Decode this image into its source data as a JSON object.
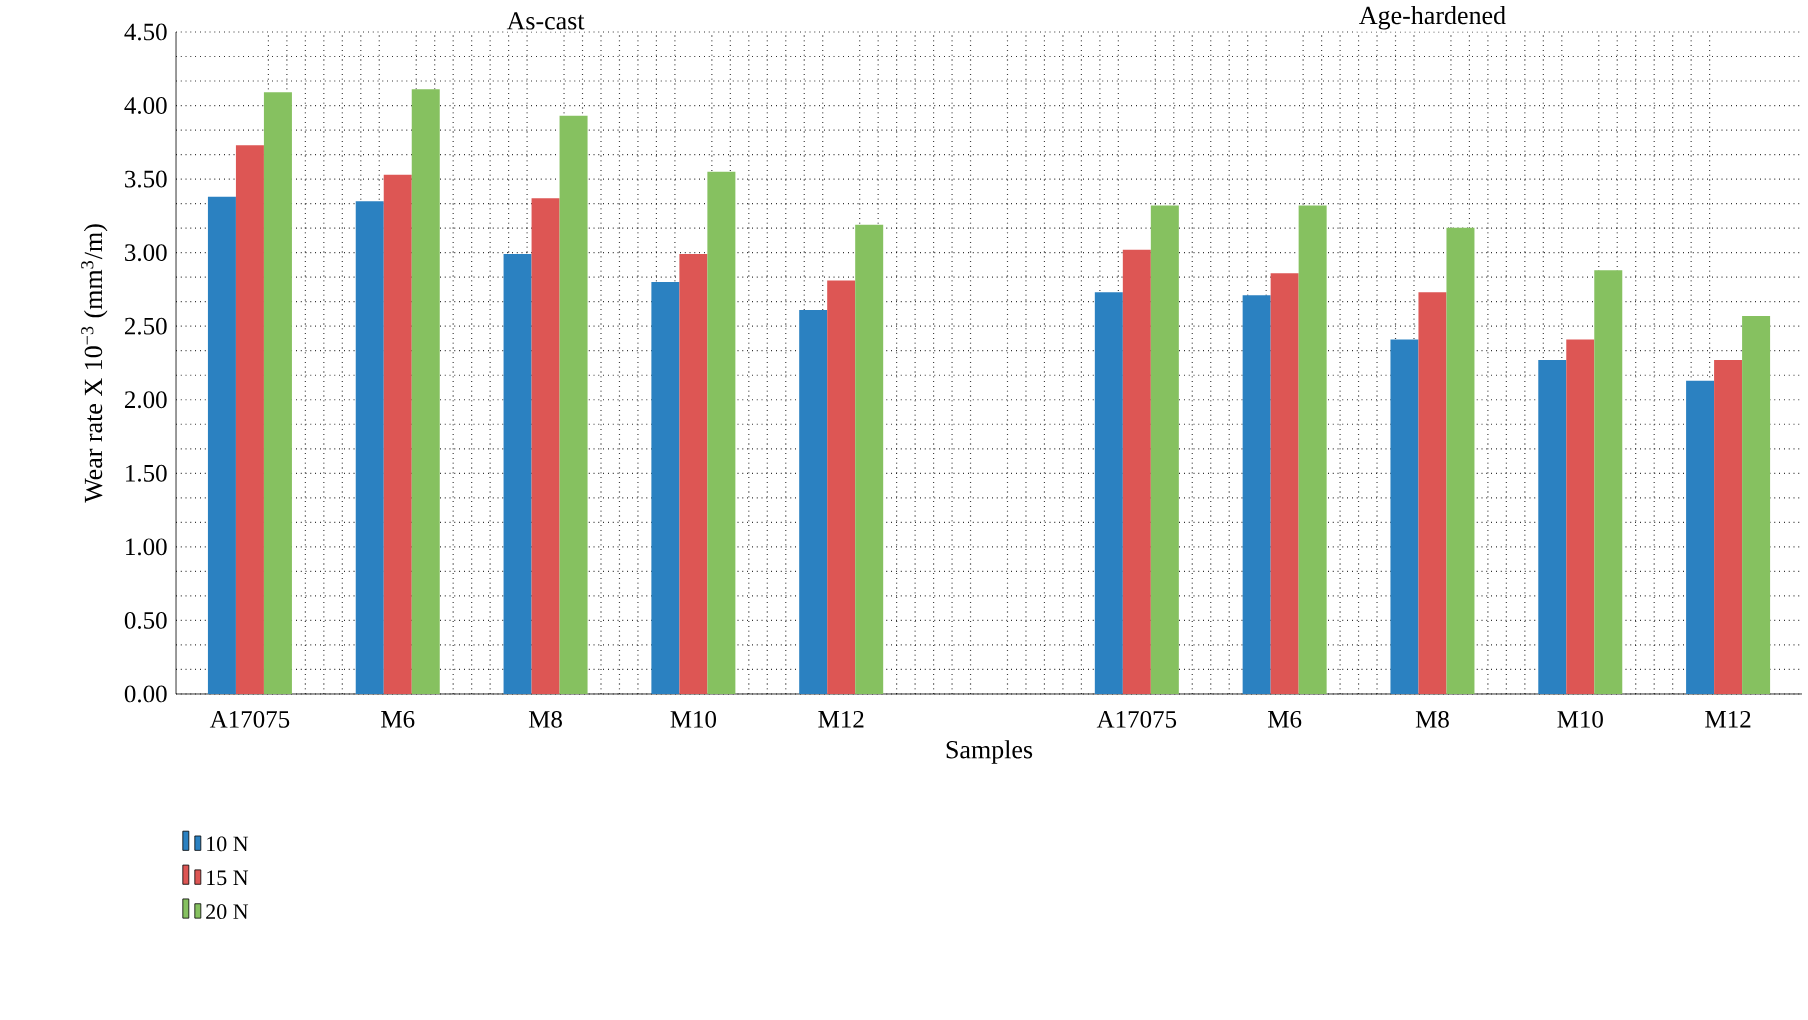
{
  "chart_data": {
    "type": "bar",
    "annotations": [
      "As-cast",
      "Age-hardened"
    ],
    "xlabel": "Samples",
    "ylabel": "Wear rate X 10$^{−3}$ (mm$^{3}$/m)",
    "categories": [
      "A17075",
      "M6",
      "M8",
      "M10",
      "M12",
      null,
      "A17075",
      "M6",
      "M8",
      "M10",
      "M12"
    ],
    "series": [
      {
        "name": "10 N",
        "color": "#2b81c1",
        "values": [
          3.38,
          3.35,
          2.99,
          2.8,
          2.61,
          null,
          2.73,
          2.71,
          2.41,
          2.27,
          2.13
        ]
      },
      {
        "name": "15 N",
        "color": "#dd5654",
        "values": [
          3.73,
          3.53,
          3.37,
          2.99,
          2.81,
          null,
          3.02,
          2.86,
          2.73,
          2.41,
          2.27
        ]
      },
      {
        "name": "20 N",
        "color": "#86c160",
        "values": [
          4.09,
          4.11,
          3.93,
          3.55,
          3.19,
          null,
          3.32,
          3.32,
          3.17,
          2.88,
          2.57
        ]
      }
    ],
    "ylim": [
      0,
      4.5
    ],
    "yticks": [
      {
        "value": 0,
        "label": "0.00"
      },
      {
        "value": 0.5,
        "label": "0.50"
      },
      {
        "value": 1,
        "label": "1.00"
      },
      {
        "value": 1.5,
        "label": "1.50"
      },
      {
        "value": 2,
        "label": "2.00"
      },
      {
        "value": 2.5,
        "label": "2.50"
      },
      {
        "value": 3,
        "label": "3.00"
      },
      {
        "value": 3.5,
        "label": "3.50"
      },
      {
        "value": 4,
        "label": "4.00"
      },
      {
        "value": 4.5,
        "label": "4.50"
      }
    ],
    "grid": true,
    "legend": "bottom left"
  }
}
